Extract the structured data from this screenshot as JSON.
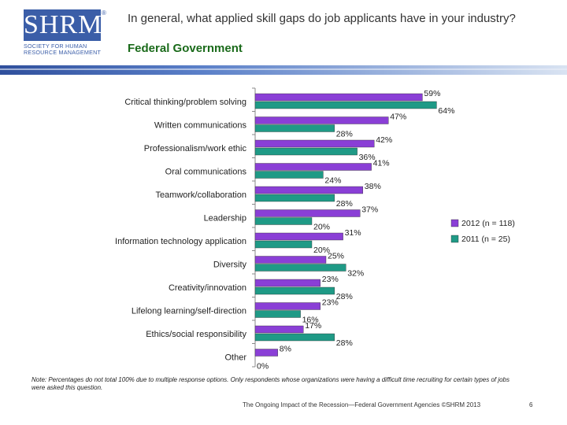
{
  "logo": {
    "brand": "SHRM",
    "tagline": "SOCIETY FOR HUMAN RESOURCE MANAGEMENT",
    "reg": "®"
  },
  "header": {
    "title": "In general, what applied skill gaps do job applicants have in your industry?",
    "subtitle": "Federal Government"
  },
  "chart_data": {
    "type": "bar",
    "orientation": "horizontal",
    "title": "In general, what applied skill gaps do job applicants have in your industry?",
    "subtitle": "Federal Government",
    "categories": [
      "Critical thinking/problem solving",
      "Written communications",
      "Professionalism/work ethic",
      "Oral communications",
      "Teamwork/collaboration",
      "Leadership",
      "Information technology application",
      "Diversity",
      "Creativity/innovation",
      "Lifelong learning/self-direction",
      "Ethics/social responsibility",
      "Other"
    ],
    "series": [
      {
        "name": "2012 (n = 118)",
        "color": "#8a3fd6",
        "values": [
          59,
          47,
          42,
          41,
          38,
          37,
          31,
          25,
          23,
          23,
          17,
          8
        ]
      },
      {
        "name": "2011 (n = 25)",
        "color": "#1f9a86",
        "values": [
          64,
          28,
          36,
          24,
          28,
          20,
          20,
          32,
          28,
          16,
          28,
          0
        ]
      }
    ],
    "value_suffix": "%",
    "xlim": [
      0,
      100
    ],
    "legend_position": "right"
  },
  "note": "Note: Percentages do not total 100% due to multiple response options. Only respondents whose organizations were having a difficult time recruiting for certain types of jobs were asked this question.",
  "footer": "The Ongoing Impact of the Recession—Federal Government Agencies ©SHRM 2013",
  "page_number": "6"
}
